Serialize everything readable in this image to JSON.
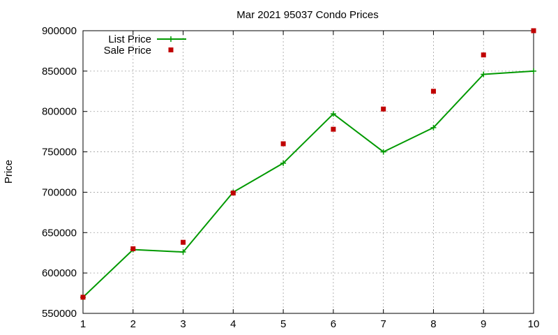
{
  "chart_data": {
    "type": "line",
    "title": "Mar 2021 95037 Condo Prices",
    "xlabel": "",
    "ylabel": "Price",
    "x": [
      1,
      2,
      3,
      4,
      5,
      6,
      7,
      8,
      9,
      10
    ],
    "xlim": [
      1,
      10
    ],
    "ylim": [
      550000,
      900000
    ],
    "x_ticks": [
      "1",
      "2",
      "3",
      "4",
      "5",
      "6",
      "7",
      "8",
      "9",
      "10"
    ],
    "y_ticks": [
      "550000",
      "600000",
      "650000",
      "700000",
      "750000",
      "800000",
      "850000",
      "900000"
    ],
    "grid": true,
    "legend_position": "top-left",
    "series": [
      {
        "name": "List Price",
        "style": "line-with-plus-markers",
        "color": "#009900",
        "values": [
          570000,
          629000,
          626000,
          700000,
          736000,
          797000,
          750000,
          780000,
          846000,
          850000
        ]
      },
      {
        "name": "Sale Price",
        "style": "square-markers",
        "color": "#c00000",
        "values": [
          570000,
          630000,
          638000,
          699000,
          760000,
          778000,
          803000,
          825000,
          870000,
          900000
        ]
      }
    ]
  }
}
